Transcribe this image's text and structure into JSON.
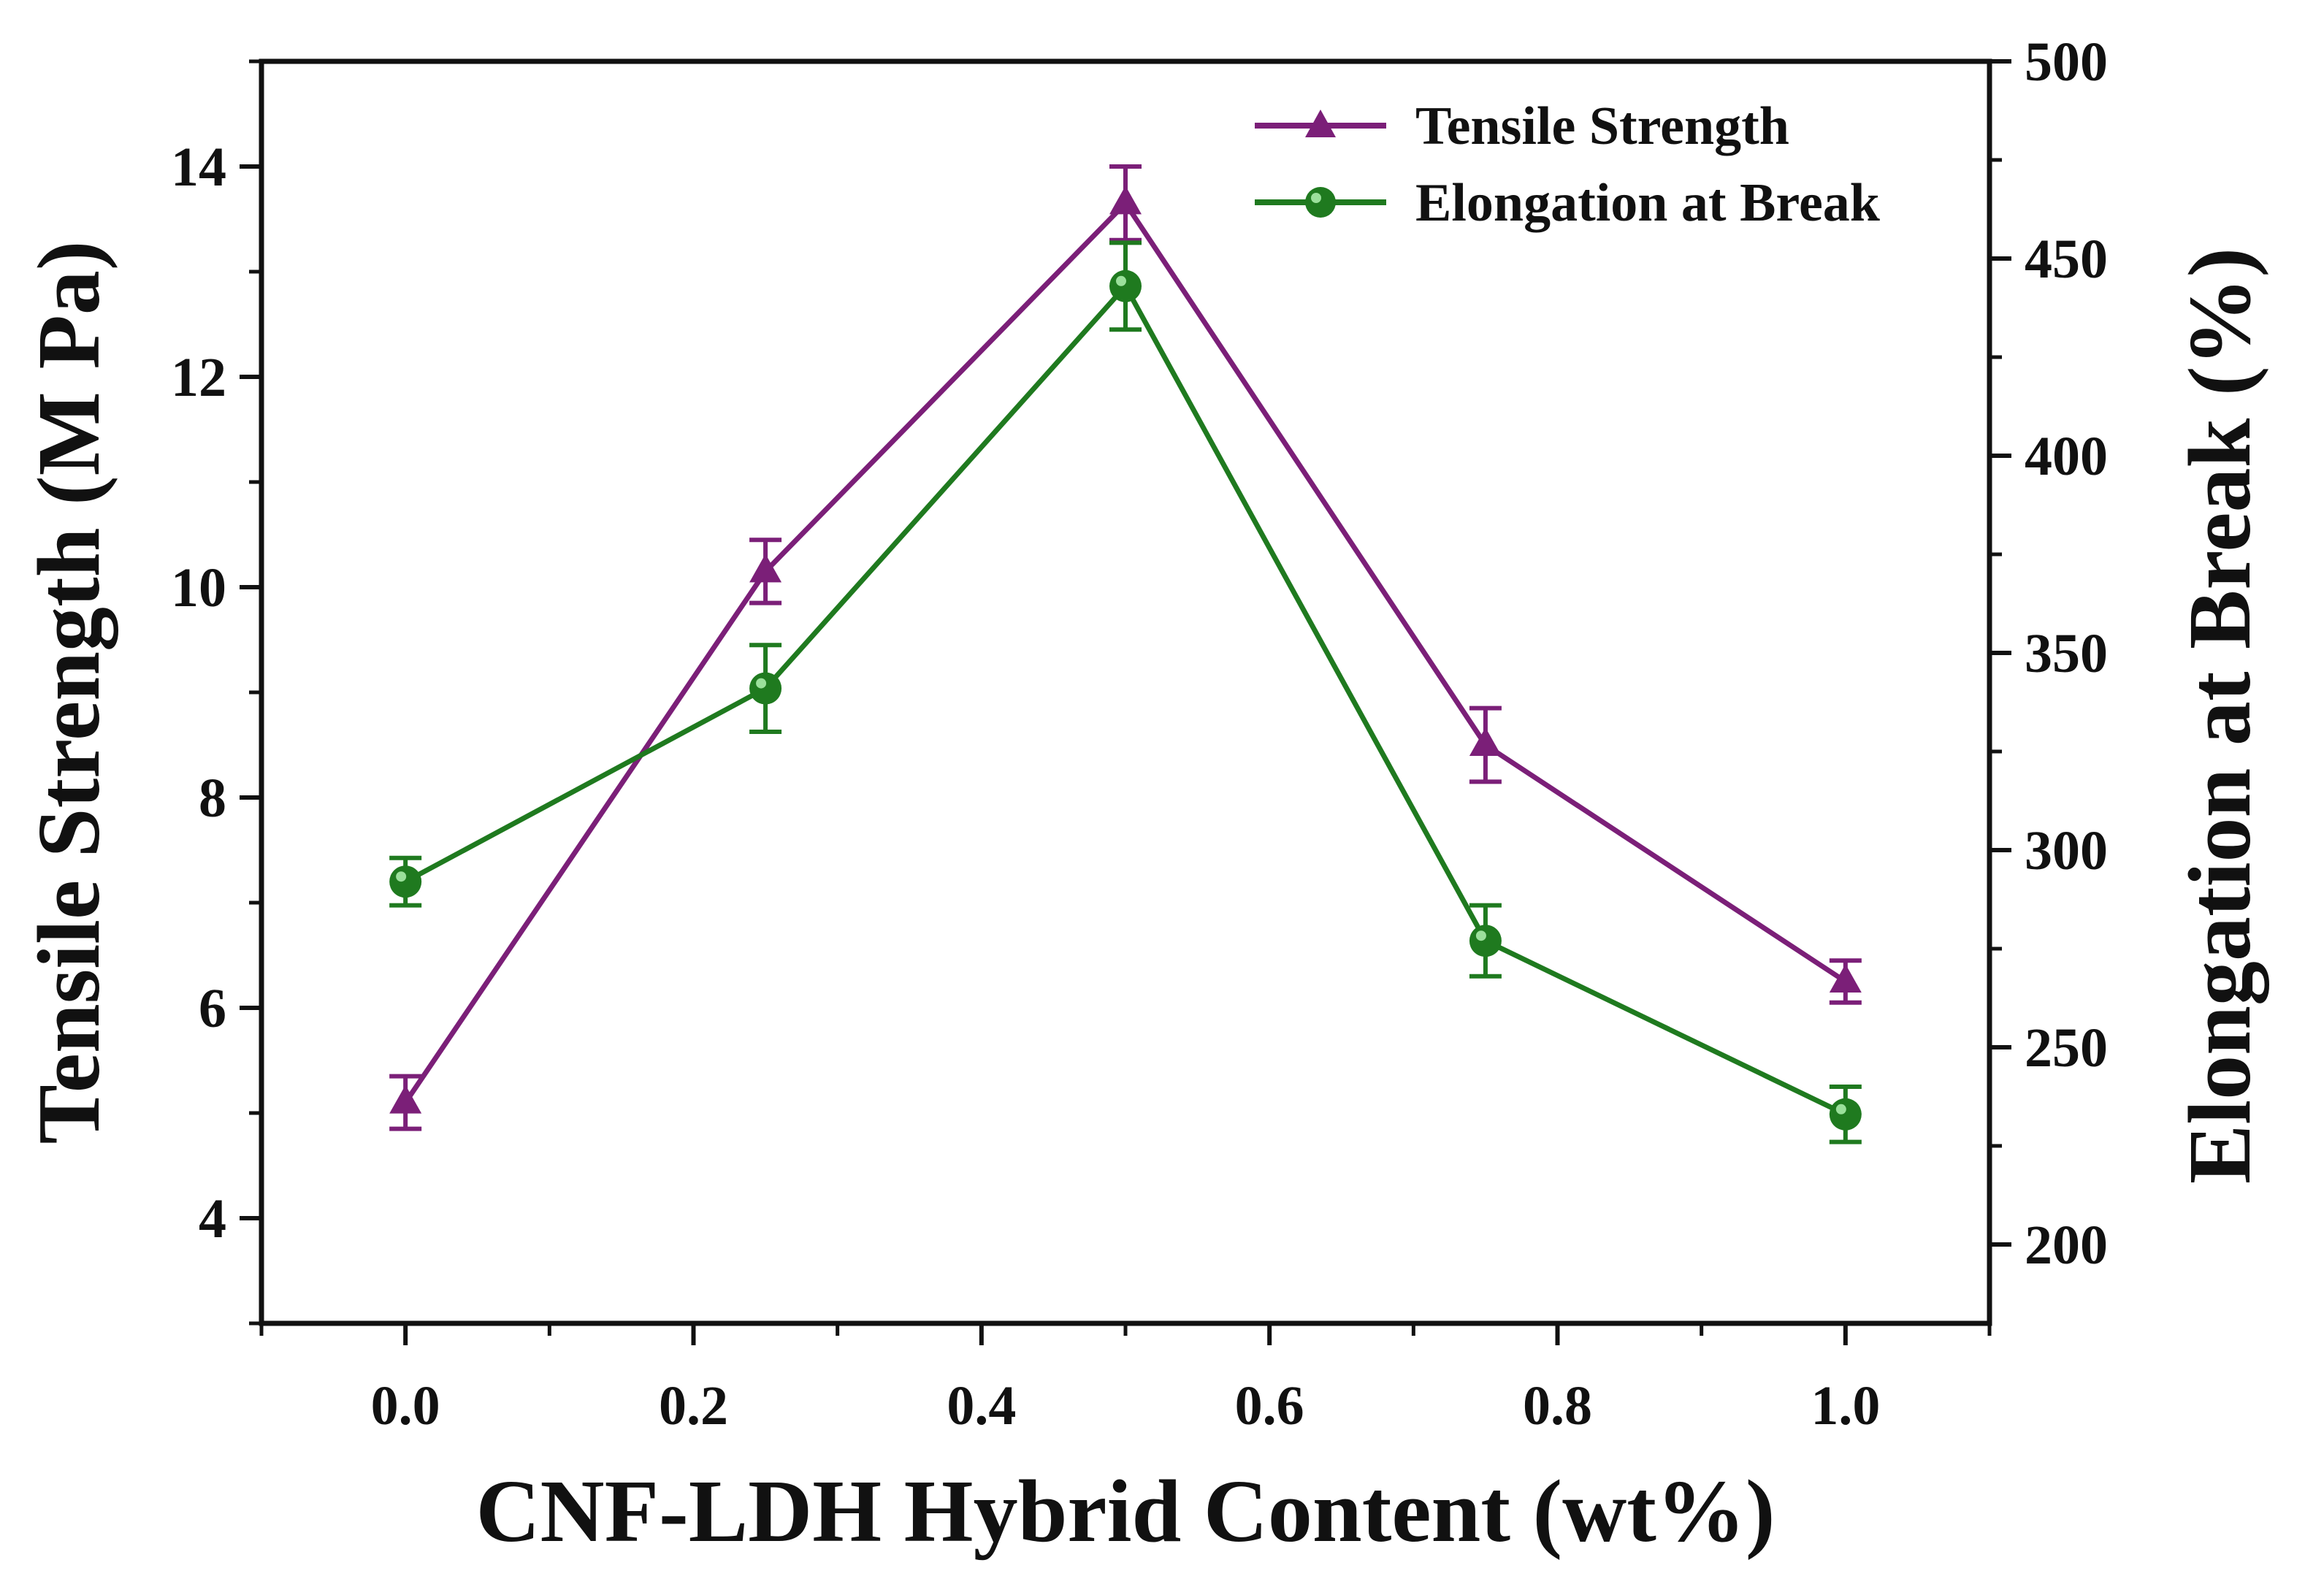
{
  "chart_data": {
    "type": "line",
    "x": [
      0.0,
      0.25,
      0.5,
      0.75,
      1.0
    ],
    "xlabel": "CNF-LDH Hybrid Content (wt%)",
    "xlim": [
      -0.1,
      1.1
    ],
    "xticks": [
      0.0,
      0.2,
      0.4,
      0.6,
      0.8,
      1.0
    ],
    "xtick_labels": [
      "0.0",
      "0.2",
      "0.4",
      "0.6",
      "0.8",
      "1.0"
    ],
    "y_left": {
      "label": "Tensile Strength (M Pa)",
      "lim": [
        3,
        15
      ],
      "ticks": [
        4,
        6,
        8,
        10,
        12,
        14
      ],
      "tick_labels": [
        "4",
        "6",
        "8",
        "10",
        "12",
        "14"
      ]
    },
    "y_right": {
      "label": "Elongation at Break (%)",
      "lim": [
        180,
        500
      ],
      "ticks": [
        200,
        250,
        300,
        350,
        400,
        450,
        500
      ],
      "tick_labels": [
        "200",
        "250",
        "300",
        "350",
        "400",
        "450",
        "500"
      ]
    },
    "series": [
      {
        "name": "Tensile Strength",
        "axis": "left",
        "color": "#7b1f78",
        "marker": "triangle",
        "values": [
          5.1,
          10.15,
          13.65,
          8.5,
          6.25
        ],
        "errors": [
          0.25,
          0.3,
          0.35,
          0.35,
          0.2
        ]
      },
      {
        "name": "Elongation at Break",
        "axis": "right",
        "color": "#1f7a1f",
        "marker": "circle",
        "values": [
          292,
          341,
          443,
          277,
          233
        ],
        "errors": [
          6,
          11,
          11,
          9,
          7
        ]
      }
    ],
    "legend": {
      "position": "top-right",
      "entries": [
        "Tensile Strength",
        "Elongation at Break"
      ]
    },
    "grid": false
  }
}
